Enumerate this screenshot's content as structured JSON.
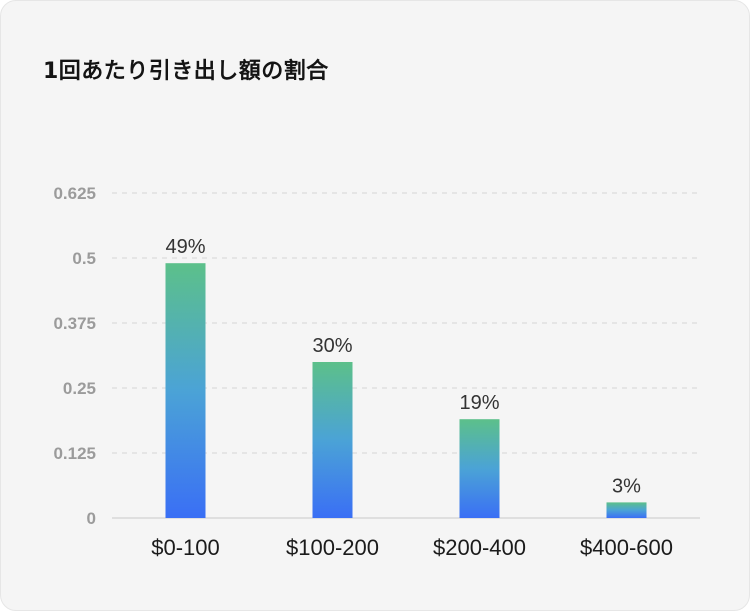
{
  "title": "1回あたり引き出し額の割合",
  "colors": {
    "background": "#f5f5f5",
    "bar_top": "#5cc08a",
    "bar_mid": "#4ba3d6",
    "bar_bottom": "#3a6ff5",
    "grid": "#dcdcdc",
    "axis_text": "#9b9b9b"
  },
  "chart_data": {
    "type": "bar",
    "title": "1回あたり引き出し額の割合",
    "categories": [
      "$0-100",
      "$100-200",
      "$200-400",
      "$400-600"
    ],
    "values": [
      0.49,
      0.3,
      0.19,
      0.03
    ],
    "data_labels": [
      "49%",
      "30%",
      "19%",
      "3%"
    ],
    "y_ticks": [
      "0",
      "0.125",
      "0.25",
      "0.375",
      "0.5",
      "0.625"
    ],
    "y_tick_values": [
      0,
      0.125,
      0.25,
      0.375,
      0.5,
      0.625
    ],
    "ylim": [
      0,
      0.625
    ],
    "xlabel": "",
    "ylabel": "",
    "grid": true,
    "legend": "none"
  }
}
